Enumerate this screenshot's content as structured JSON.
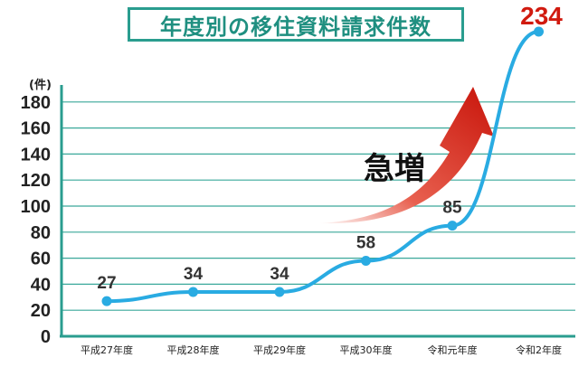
{
  "chart_data": {
    "type": "line",
    "title": "年度別の移住資料請求件数",
    "ylabel": "(件)",
    "xlabel": "",
    "categories": [
      "平成27年度",
      "平成28年度",
      "平成29年度",
      "平成30年度",
      "令和元年度",
      "令和2年度"
    ],
    "series": [
      {
        "values": [
          27,
          34,
          34,
          58,
          85,
          234
        ]
      }
    ],
    "data_labels": [
      "27",
      "34",
      "34",
      "58",
      "85",
      "234"
    ],
    "y_ticks": [
      "0",
      "20",
      "40",
      "60",
      "80",
      "100",
      "120",
      "140",
      "160",
      "180"
    ],
    "ylim": [
      0,
      200
    ],
    "grid": true,
    "annotation": "急増",
    "colors": {
      "line": "#29abe2",
      "grid": "#3aa89a",
      "axis": "#2a9d8f",
      "highlight_label": "#d11a0f",
      "arrow": "#d11a0f",
      "title": "#1f8f80"
    }
  }
}
